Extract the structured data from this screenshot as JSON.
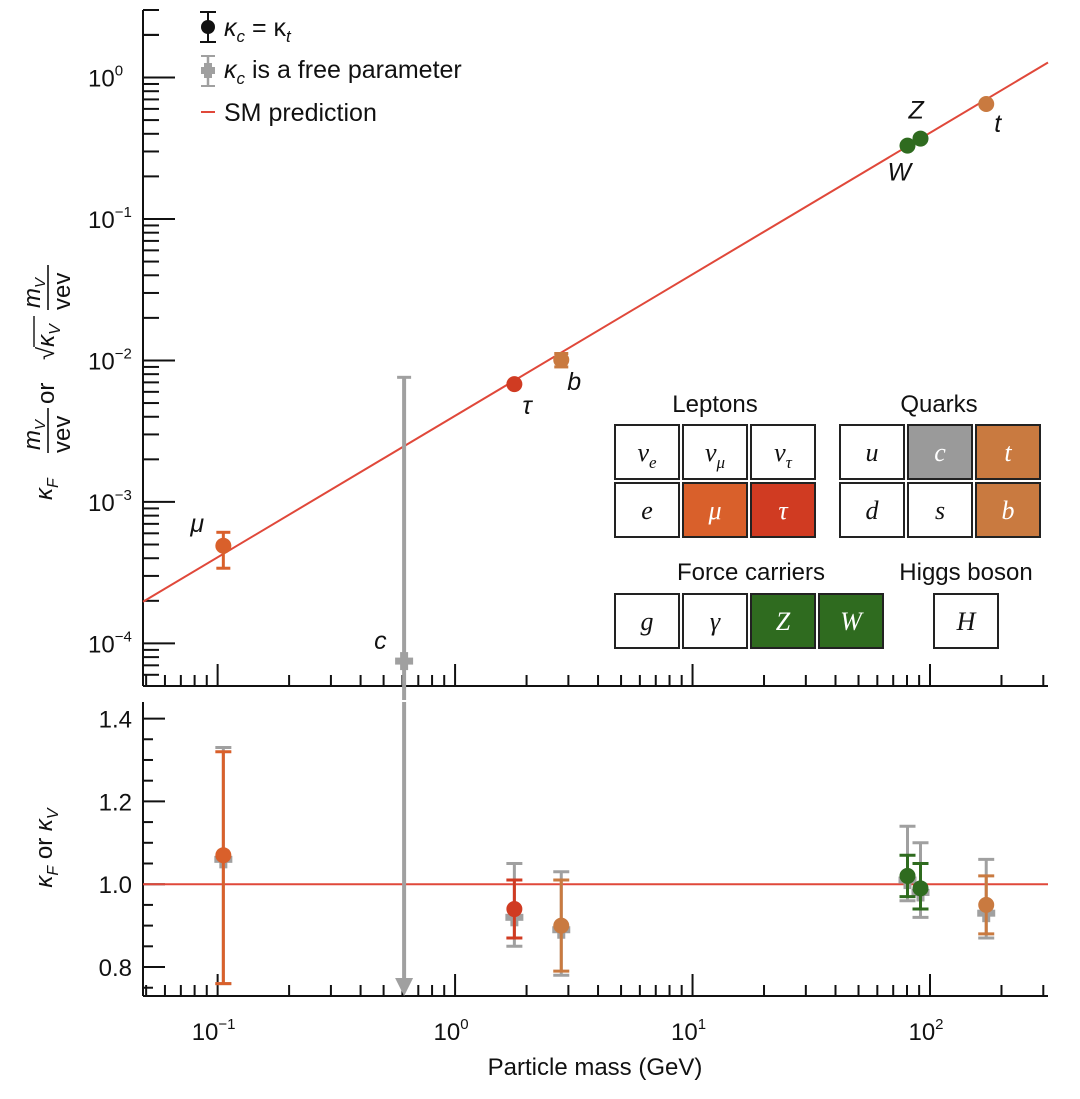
{
  "chart_data": [
    {
      "type": "scatter",
      "panel": "top",
      "title": "",
      "xlabel": "Particle mass (GeV)",
      "ylabel": "κ_F m_V/vev or √κ_V m_V/vev",
      "xscale": "log",
      "yscale": "log",
      "xlim": [
        0.0485,
        314
      ],
      "ylim": [
        5e-05,
        3.0
      ],
      "y_ticks": [
        {
          "value": 1,
          "label": "10",
          "exp": "0"
        },
        {
          "value": 0.1,
          "label": "10",
          "exp": "−1"
        },
        {
          "value": 0.01,
          "label": "10",
          "exp": "−2"
        },
        {
          "value": 0.001,
          "label": "10",
          "exp": "−3"
        },
        {
          "value": 0.0001,
          "label": "10",
          "exp": "−4"
        }
      ],
      "legend": {
        "placement": "top-left",
        "entries": [
          {
            "label": "κ_c = κ_t",
            "marker": "black-dot-errorbar"
          },
          {
            "label": "κ_c is a free parameter",
            "marker": "gray-cross-errorbar"
          },
          {
            "label": "SM prediction",
            "marker": "red-line"
          }
        ]
      },
      "sm_line": {
        "x": [
          0.0485,
          314
        ],
        "y": [
          0.000197,
          1.276
        ],
        "color": "#e0483a"
      },
      "series": [
        {
          "name": "κ_c = κ_t",
          "points": [
            {
              "label": "μ",
              "x": 0.1057,
              "y": 0.00049,
              "ylo": 0.00034,
              "yhi": 0.00061,
              "color": "#d9602b"
            },
            {
              "label": "τ",
              "x": 1.777,
              "y": 0.0068,
              "ylo": 0.0063,
              "yhi": 0.0073,
              "color": "#d03b22"
            },
            {
              "label": "b",
              "x": 2.8,
              "y": 0.0101,
              "ylo": 0.009,
              "yhi": 0.0112,
              "color": "#c97a40"
            },
            {
              "label": "W",
              "x": 80.4,
              "y": 0.33,
              "ylo": 0.32,
              "yhi": 0.34,
              "color": "#2f6b1f"
            },
            {
              "label": "Z",
              "x": 91.2,
              "y": 0.37,
              "ylo": 0.36,
              "yhi": 0.38,
              "color": "#2f6b1f"
            },
            {
              "label": "t",
              "x": 172.5,
              "y": 0.65,
              "ylo": 0.61,
              "yhi": 0.69,
              "color": "#c97a40"
            }
          ]
        },
        {
          "name": "κ_c is a free parameter",
          "points": [
            {
              "label": "c",
              "x": 0.61,
              "y": 7.5e-05,
              "ylo": 4.5e-05,
              "yhi": 0.0076,
              "color": "#a0a0a0"
            }
          ]
        }
      ]
    },
    {
      "type": "scatter",
      "panel": "bottom",
      "xlabel": "Particle mass (GeV)",
      "ylabel": "κ_F or κ_V",
      "xscale": "log",
      "xlim": [
        0.0485,
        314
      ],
      "ylim": [
        0.73,
        1.44
      ],
      "x_ticks": [
        {
          "value": 0.1,
          "label": "10",
          "exp": "−1"
        },
        {
          "value": 1,
          "label": "10",
          "exp": "0"
        },
        {
          "value": 10,
          "label": "10",
          "exp": "1"
        },
        {
          "value": 100,
          "label": "10",
          "exp": "2"
        }
      ],
      "y_ticks": [
        {
          "value": 1.4,
          "label": "1.4"
        },
        {
          "value": 1.2,
          "label": "1.2"
        },
        {
          "value": 1.0,
          "label": "1.0"
        },
        {
          "value": 0.8,
          "label": "0.8"
        }
      ],
      "sm_line_y": 1.0,
      "series": [
        {
          "name": "κ_c = κ_t",
          "points": [
            {
              "label": "μ",
              "x": 0.1057,
              "y": 1.07,
              "ylo": 0.76,
              "yhi": 1.32,
              "color": "#d9602b"
            },
            {
              "label": "τ",
              "x": 1.777,
              "y": 0.94,
              "ylo": 0.87,
              "yhi": 1.01,
              "color": "#d03b22"
            },
            {
              "label": "b",
              "x": 2.8,
              "y": 0.9,
              "ylo": 0.79,
              "yhi": 1.01,
              "color": "#c97a40"
            },
            {
              "label": "W",
              "x": 80.4,
              "y": 1.02,
              "ylo": 0.97,
              "yhi": 1.07,
              "color": "#2f6b1f"
            },
            {
              "label": "Z",
              "x": 91.2,
              "y": 0.99,
              "ylo": 0.94,
              "yhi": 1.05,
              "color": "#2f6b1f"
            },
            {
              "label": "t",
              "x": 172.5,
              "y": 0.95,
              "ylo": 0.88,
              "yhi": 1.02,
              "color": "#c97a40"
            }
          ]
        },
        {
          "name": "κ_c is a free parameter",
          "points": [
            {
              "label": "μ",
              "x": 0.1057,
              "y": 1.06,
              "ylo": 0.76,
              "yhi": 1.33,
              "color": "#a0a0a0"
            },
            {
              "label": "τ",
              "x": 1.777,
              "y": 0.92,
              "ylo": 0.85,
              "yhi": 1.05,
              "color": "#a0a0a0"
            },
            {
              "label": "b",
              "x": 2.8,
              "y": 0.89,
              "ylo": 0.78,
              "yhi": 1.03,
              "color": "#a0a0a0"
            },
            {
              "label": "W",
              "x": 80.4,
              "y": 1.01,
              "ylo": 0.96,
              "yhi": 1.14,
              "color": "#a0a0a0"
            },
            {
              "label": "Z",
              "x": 91.2,
              "y": 0.98,
              "ylo": 0.92,
              "yhi": 1.1,
              "color": "#a0a0a0"
            },
            {
              "label": "t",
              "x": 172.5,
              "y": 0.93,
              "ylo": 0.87,
              "yhi": 1.06,
              "color": "#a0a0a0"
            },
            {
              "label": "c",
              "x": 0.61,
              "y": null,
              "ylo": 0.73,
              "yhi": 1.44,
              "arrow": "down",
              "color": "#a0a0a0"
            }
          ]
        }
      ]
    }
  ],
  "legend": {
    "entry1_kappa": "κ",
    "entry1_c": "c",
    "entry1_eq": " = κ",
    "entry1_t": "t",
    "entry2_kappa": "κ",
    "entry2_c": "c",
    "entry2_rest": " is a free parameter",
    "entry3": "SM prediction"
  },
  "ylabels": {
    "top_kF": "κ",
    "top_kF_sub": "F",
    "top_m": "m",
    "top_m_sub": "V",
    "top_vev": "vev",
    "top_or": " or ",
    "top_sqrt": "√",
    "top_kV": "κ",
    "top_kV_sub": "V",
    "bottom_k1": "κ",
    "bottom_s1": "F",
    "bottom_or": " or ",
    "bottom_k2": "κ",
    "bottom_s2": "V"
  },
  "xlabel": "Particle mass (GeV)",
  "particle_table": {
    "leptons_title": "Leptons",
    "quarks_title": "Quarks",
    "force_title": "Force carriers",
    "higgs_title": "Higgs boson",
    "colors": {
      "muon": "#d9602b",
      "tau": "#d03b22",
      "charm": "#9a9a9a",
      "top_bottom": "#c97a40",
      "boson": "#2f6b1f",
      "none": "#ffffff"
    },
    "leptons": [
      [
        {
          "sym": "ν",
          "sub": "e",
          "fill": "none"
        },
        {
          "sym": "ν",
          "sub": "μ",
          "fill": "none"
        },
        {
          "sym": "ν",
          "sub": "τ",
          "fill": "none"
        }
      ],
      [
        {
          "sym": "e",
          "sub": "",
          "fill": "none"
        },
        {
          "sym": "μ",
          "sub": "",
          "fill": "muon"
        },
        {
          "sym": "τ",
          "sub": "",
          "fill": "tau"
        }
      ]
    ],
    "quarks": [
      [
        {
          "sym": "u",
          "fill": "none"
        },
        {
          "sym": "c",
          "fill": "charm"
        },
        {
          "sym": "t",
          "fill": "top_bottom"
        }
      ],
      [
        {
          "sym": "d",
          "fill": "none"
        },
        {
          "sym": "s",
          "fill": "none"
        },
        {
          "sym": "b",
          "fill": "top_bottom"
        }
      ]
    ],
    "force": [
      {
        "sym": "g",
        "fill": "none"
      },
      {
        "sym": "γ",
        "fill": "none"
      },
      {
        "sym": "Z",
        "fill": "boson"
      },
      {
        "sym": "W",
        "fill": "boson"
      }
    ],
    "higgs": [
      {
        "sym": "H",
        "fill": "none"
      }
    ]
  }
}
